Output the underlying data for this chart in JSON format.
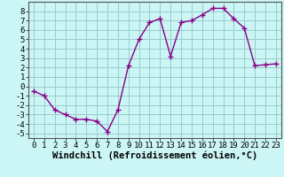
{
  "x": [
    0,
    1,
    2,
    3,
    4,
    5,
    6,
    7,
    8,
    9,
    10,
    11,
    12,
    13,
    14,
    15,
    16,
    17,
    18,
    19,
    20,
    21,
    22,
    23
  ],
  "y": [
    -0.5,
    -1.0,
    -2.5,
    -3.0,
    -3.5,
    -3.5,
    -3.7,
    -4.8,
    -2.5,
    2.2,
    5.0,
    6.8,
    7.2,
    3.2,
    6.8,
    7.0,
    7.6,
    8.3,
    8.3,
    7.2,
    6.2,
    2.2,
    2.3,
    2.4
  ],
  "line_color": "#880088",
  "marker": "+",
  "markersize": 4,
  "linewidth": 1.0,
  "bg_color": "#ccf5f5",
  "grid_color": "#99cccc",
  "xlabel": "Windchill (Refroidissement éolien,°C)",
  "xlabel_fontsize": 7.5,
  "tick_fontsize": 6.5,
  "xlim": [
    -0.5,
    23.5
  ],
  "ylim": [
    -5.5,
    9.0
  ],
  "yticks": [
    -5,
    -4,
    -3,
    -2,
    -1,
    0,
    1,
    2,
    3,
    4,
    5,
    6,
    7,
    8
  ],
  "xticks": [
    0,
    1,
    2,
    3,
    4,
    5,
    6,
    7,
    8,
    9,
    10,
    11,
    12,
    13,
    14,
    15,
    16,
    17,
    18,
    19,
    20,
    21,
    22,
    23
  ]
}
